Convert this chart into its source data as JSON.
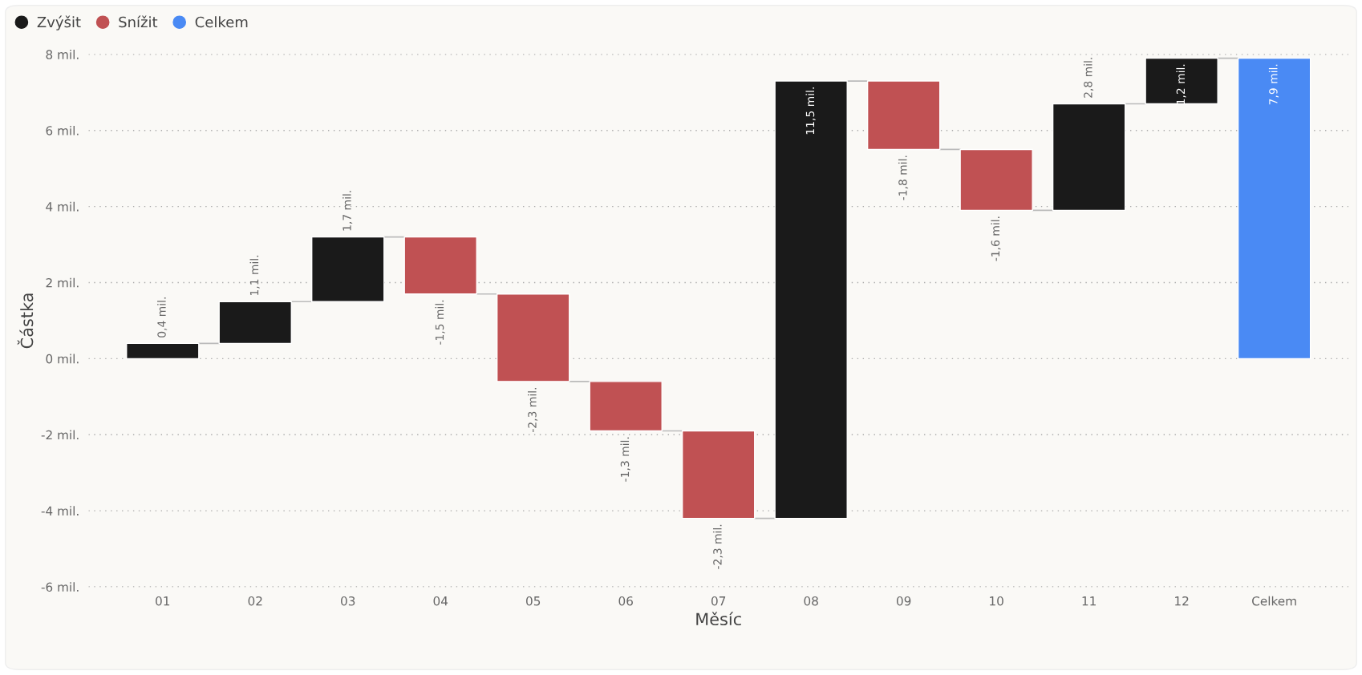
{
  "chart_data": {
    "type": "bar",
    "xlabel": "Měsíc",
    "ylabel": "Částka",
    "categories": [
      "01",
      "02",
      "03",
      "04",
      "05",
      "06",
      "07",
      "08",
      "09",
      "10",
      "11",
      "12",
      "Celkem"
    ],
    "series": [
      {
        "name": "Zvýšit",
        "color": "#1a1a1a",
        "base": [
          0,
          0.4,
          1.5,
          null,
          null,
          null,
          null,
          -4.2,
          null,
          null,
          3.9,
          6.7,
          null
        ],
        "values": [
          0.4,
          1.1,
          1.7,
          null,
          null,
          null,
          null,
          11.5,
          null,
          null,
          2.8,
          1.2,
          null
        ],
        "value_labels": [
          "0,4 mil.",
          "1,1 mil.",
          "1,7 mil.",
          null,
          null,
          null,
          null,
          "11,5 mil.",
          null,
          null,
          "2,8 mil.",
          "1,2 mil.",
          null
        ]
      },
      {
        "name": "Snížit",
        "color": "#c05153",
        "base": [
          null,
          null,
          null,
          3.2,
          1.7,
          -0.6,
          -1.9,
          null,
          7.3,
          5.5,
          null,
          null,
          null
        ],
        "values": [
          null,
          null,
          null,
          -1.5,
          -2.3,
          -1.3,
          -2.3,
          null,
          -1.8,
          -1.6,
          null,
          null,
          null
        ],
        "value_labels": [
          null,
          null,
          null,
          "-1,5 mil.",
          "-2,3 mil.",
          "-1,3 mil.",
          "-2,3 mil.",
          null,
          "-1,8 mil.",
          "-1,6 mil.",
          null,
          null,
          null
        ]
      },
      {
        "name": "Celkem",
        "color": "#4a8af4",
        "base": [
          null,
          null,
          null,
          null,
          null,
          null,
          null,
          null,
          null,
          null,
          null,
          null,
          0
        ],
        "values": [
          null,
          null,
          null,
          null,
          null,
          null,
          null,
          null,
          null,
          null,
          null,
          null,
          7.9
        ],
        "value_labels": [
          null,
          null,
          null,
          null,
          null,
          null,
          null,
          null,
          null,
          null,
          null,
          null,
          "7,9 mil."
        ]
      }
    ],
    "ylim": [
      -6,
      8
    ],
    "yticks": [
      {
        "value": -6,
        "label": "-6 mil."
      },
      {
        "value": -4,
        "label": "-4 mil."
      },
      {
        "value": -2,
        "label": "-2 mil."
      },
      {
        "value": 0,
        "label": "0 mil."
      },
      {
        "value": 2,
        "label": "2 mil."
      },
      {
        "value": 4,
        "label": "4 mil."
      },
      {
        "value": 6,
        "label": "6 mil."
      },
      {
        "value": 8,
        "label": "8 mil."
      }
    ],
    "grid": "y",
    "legend": "top left"
  }
}
